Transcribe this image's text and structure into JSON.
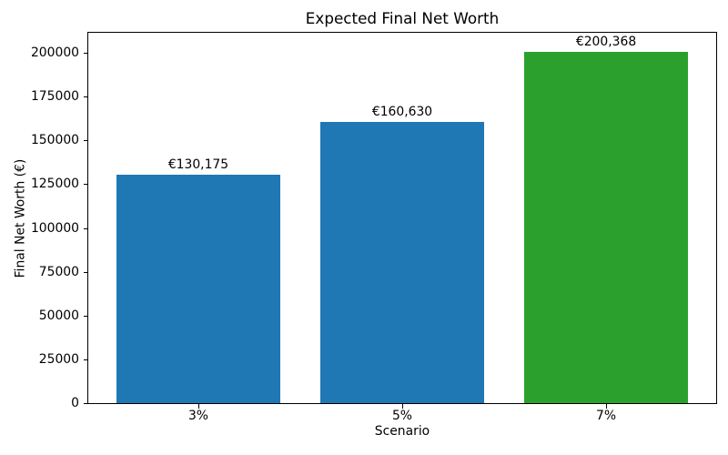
{
  "chart_data": {
    "type": "bar",
    "title": "Expected Final Net Worth",
    "xlabel": "Scenario",
    "ylabel": "Final Net Worth (€)",
    "categories": [
      "3%",
      "5%",
      "7%"
    ],
    "values": [
      130175,
      160630,
      200368
    ],
    "bar_labels": [
      "€130,175",
      "€160,630",
      "€200,368"
    ],
    "bar_colors": [
      "#1f77b4",
      "#1f77b4",
      "#2ca02c"
    ],
    "yticks": [
      0,
      25000,
      50000,
      75000,
      100000,
      125000,
      150000,
      175000,
      200000
    ],
    "ytick_labels": [
      "0",
      "25000",
      "50000",
      "75000",
      "100000",
      "125000",
      "150000",
      "175000",
      "200000"
    ],
    "ylim": [
      0,
      211429
    ],
    "grid": false,
    "legend_position": "none",
    "background_color": "#ffffff",
    "frame_color": "#000000"
  }
}
